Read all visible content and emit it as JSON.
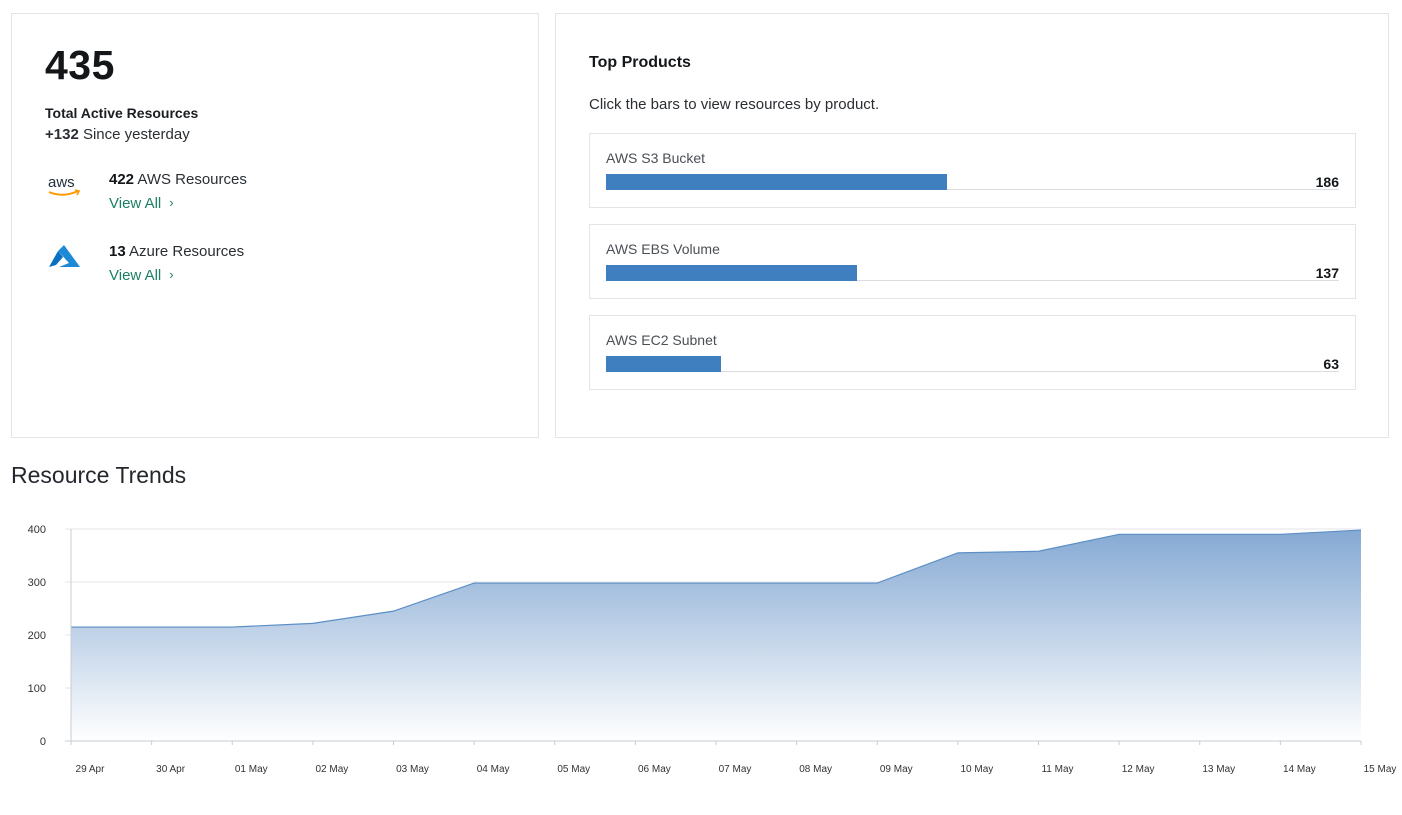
{
  "summary": {
    "total": "435",
    "total_label": "Total Active Resources",
    "delta": "+132",
    "delta_text": "Since yesterday",
    "providers": [
      {
        "icon": "aws-logo-icon",
        "count": "422",
        "label": "AWS Resources",
        "link": "View All"
      },
      {
        "icon": "azure-logo-icon",
        "count": "13",
        "label": "Azure Resources",
        "link": "View All"
      }
    ]
  },
  "top_products": {
    "title": "Top Products",
    "subtitle": "Click the bars to view resources by product.",
    "max": 400,
    "items": [
      {
        "label": "AWS S3 Bucket",
        "value": 186
      },
      {
        "label": "AWS EBS Volume",
        "value": 137
      },
      {
        "label": "AWS EC2 Subnet",
        "value": 63
      }
    ]
  },
  "trends": {
    "title": "Resource Trends"
  },
  "colors": {
    "accent": "#3f7ebf",
    "link": "#1b7f63",
    "aws_orange": "#f90",
    "azure_blue": "#0078d4"
  },
  "chart_data": {
    "type": "area",
    "x": [
      "29 Apr",
      "30 Apr",
      "01 May",
      "02 May",
      "03 May",
      "04 May",
      "05 May",
      "06 May",
      "07 May",
      "08 May",
      "09 May",
      "10 May",
      "11 May",
      "12 May",
      "13 May",
      "14 May",
      "15 May"
    ],
    "series": [
      {
        "values": [
          215,
          215,
          215,
          222,
          245,
          298,
          298,
          298,
          298,
          298,
          298,
          355,
          358,
          390,
          390,
          390,
          398
        ]
      }
    ],
    "ylim": [
      0,
      400
    ],
    "yticks": [
      0,
      100,
      200,
      300,
      400
    ],
    "grid": true
  }
}
